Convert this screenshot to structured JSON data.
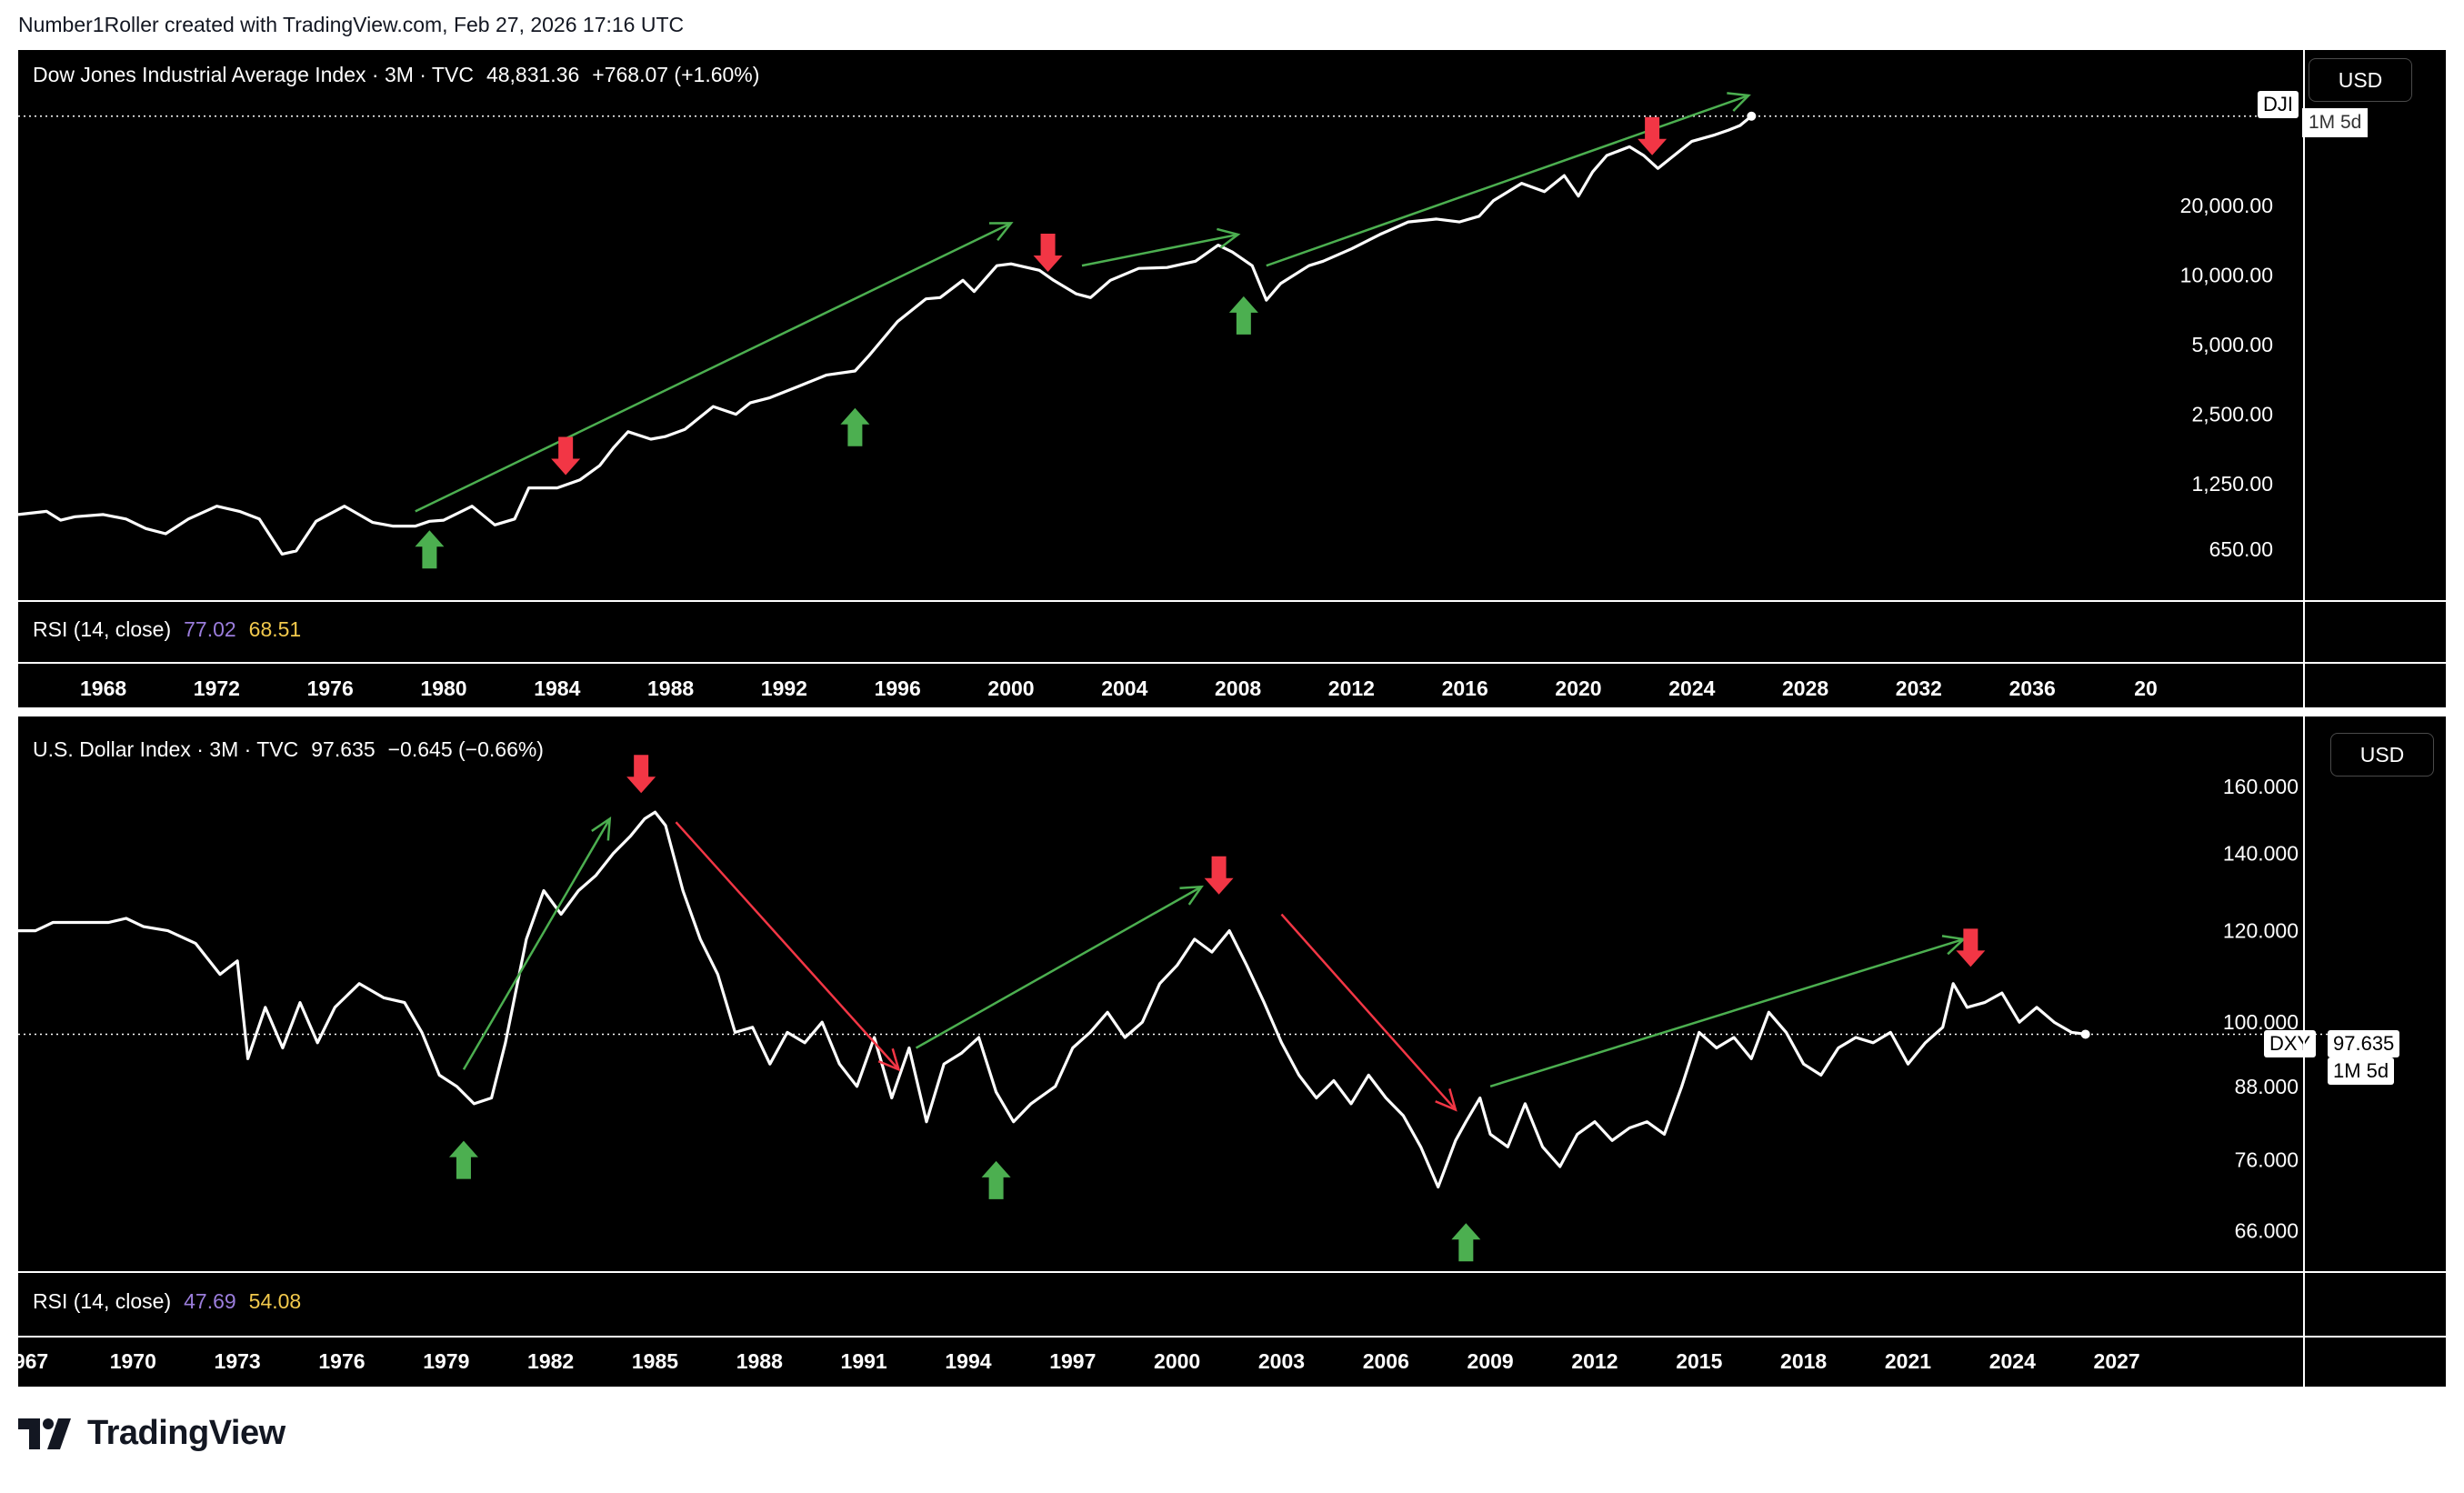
{
  "attribution": "Number1Roller created with TradingView.com, Feb 27, 2026 17:16 UTC",
  "brand": "TradingView",
  "colors": {
    "up_arrow": "#4caf50",
    "down_arrow": "#f23645",
    "trend_up": "#4caf50",
    "trend_down": "#f23645",
    "line": "#ffffff",
    "rsi_1": "#9b7ddc",
    "rsi_2": "#f2c94c"
  },
  "chart_data": [
    {
      "type": "line",
      "legend": {
        "name": "Dow Jones Industrial Average Index · 3M · TVC",
        "price": "48,831.36",
        "change": "+768.07 (+1.60%)"
      },
      "currency": "USD",
      "symbol_tag": "DJI",
      "interval_tag": "1M 5d",
      "yscale": "log",
      "ylim": [
        470,
        60000
      ],
      "xlim": [
        1965,
        2040
      ],
      "y_ticks": [
        "20,000.00",
        "10,000.00",
        "5,000.00",
        "2,500.00",
        "1,250.00",
        "650.00"
      ],
      "y_tick_values": [
        20000,
        10000,
        5000,
        2500,
        1250,
        650
      ],
      "x_ticks": [
        "1968",
        "1972",
        "1976",
        "1980",
        "1984",
        "1988",
        "1992",
        "1996",
        "2000",
        "2004",
        "2008",
        "2012",
        "2016",
        "2020",
        "2024",
        "2028",
        "2032",
        "2036",
        "20"
      ],
      "x_tick_values": [
        1968,
        1972,
        1976,
        1980,
        1984,
        1988,
        1992,
        1996,
        2000,
        2004,
        2008,
        2012,
        2016,
        2020,
        2024,
        2028,
        2032,
        2036,
        2040
      ],
      "x": [
        1965.0,
        1966.0,
        1966.5,
        1967.0,
        1968.0,
        1968.8,
        1969.5,
        1970.2,
        1971.0,
        1972.0,
        1972.8,
        1973.5,
        1974.3,
        1974.8,
        1975.5,
        1976.5,
        1977.5,
        1978.2,
        1979.0,
        1979.5,
        1980.0,
        1981.0,
        1981.8,
        1982.5,
        1983.0,
        1984.0,
        1984.8,
        1985.5,
        1986.0,
        1986.5,
        1987.3,
        1987.8,
        1988.5,
        1989.5,
        1990.3,
        1990.8,
        1991.5,
        1992.5,
        1993.5,
        1994.5,
        1995.0,
        1996.0,
        1997.0,
        1997.5,
        1998.3,
        1998.7,
        1999.5,
        2000.0,
        2001.0,
        2001.5,
        2002.3,
        2002.8,
        2003.5,
        2004.5,
        2005.5,
        2006.5,
        2007.3,
        2007.8,
        2008.5,
        2009.0,
        2009.5,
        2010.5,
        2011.0,
        2012.0,
        2013.0,
        2014.0,
        2015.0,
        2015.8,
        2016.5,
        2017.0,
        2018.0,
        2018.8,
        2019.5,
        2020.0,
        2020.5,
        2021.0,
        2021.8,
        2022.3,
        2022.8,
        2023.5,
        2024.0,
        2024.8,
        2025.3,
        2025.7,
        2026.1
      ],
      "values": [
        920,
        950,
        870,
        900,
        920,
        880,
        800,
        760,
        880,
        1000,
        950,
        880,
        620,
        640,
        860,
        1000,
        850,
        820,
        820,
        860,
        870,
        1000,
        830,
        880,
        1200,
        1200,
        1300,
        1500,
        1800,
        2100,
        1950,
        2000,
        2150,
        2700,
        2500,
        2800,
        2950,
        3300,
        3700,
        3850,
        4500,
        6300,
        7900,
        8000,
        9500,
        8500,
        11000,
        11200,
        10500,
        9500,
        8300,
        8000,
        9500,
        10700,
        10800,
        11500,
        13500,
        12600,
        11000,
        7800,
        9200,
        11000,
        11500,
        13000,
        15000,
        17000,
        17500,
        17000,
        18000,
        21000,
        25000,
        23000,
        27000,
        22000,
        28000,
        33000,
        36000,
        33000,
        29000,
        34000,
        38000,
        40500,
        42500,
        44500,
        48831
      ],
      "annotations": {
        "up_arrows": [
          [
            1979.5,
            650
          ],
          [
            1994.5,
            2200
          ],
          [
            2008.2,
            6700
          ]
        ],
        "down_arrows": [
          [
            1984.3,
            1650
          ],
          [
            2001.3,
            12500
          ],
          [
            2022.6,
            40000
          ]
        ],
        "trend_lines": [
          [
            [
              1979.0,
              950
            ],
            [
              2000.0,
              16800
            ]
          ],
          [
            [
              2002.5,
              11000
            ],
            [
              2008.0,
              15000
            ]
          ],
          [
            [
              2009.0,
              11000
            ],
            [
              2026.0,
              60000
            ]
          ]
        ]
      },
      "indicator": {
        "name": "RSI (14, close)",
        "value_1": "77.02",
        "value_2": "68.51"
      }
    },
    {
      "type": "line",
      "legend": {
        "name": "U.S. Dollar Index · 3M · TVC",
        "price": "97.635",
        "change": "−0.645 (−0.66%)"
      },
      "currency": "USD",
      "symbol_tag": "DXY",
      "price_tag": "97.635",
      "interval_tag": "1M 5d",
      "yscale": "log",
      "ylim": [
        62,
        172
      ],
      "xlim": [
        1966.7,
        2029.4
      ],
      "y_ticks": [
        "160.000",
        "140.000",
        "120.000",
        "100.000",
        "88.000",
        "76.000",
        "66.000"
      ],
      "y_tick_values": [
        160,
        140,
        120,
        100,
        88,
        76,
        66
      ],
      "x_ticks": [
        "967",
        "1970",
        "1973",
        "1976",
        "1979",
        "1982",
        "1985",
        "1988",
        "1991",
        "1994",
        "1997",
        "2000",
        "2003",
        "2006",
        "2009",
        "2012",
        "2015",
        "2018",
        "2021",
        "2024",
        "2027"
      ],
      "x_tick_values": [
        1967,
        1970,
        1973,
        1976,
        1979,
        1982,
        1985,
        1988,
        1991,
        1994,
        1997,
        2000,
        2003,
        2006,
        2009,
        2012,
        2015,
        2018,
        2021,
        2024,
        2027
      ],
      "x": [
        1966.7,
        1967.2,
        1967.7,
        1968.5,
        1969.3,
        1969.8,
        1970.3,
        1971.0,
        1971.8,
        1972.5,
        1973.0,
        1973.3,
        1973.8,
        1974.3,
        1974.8,
        1975.3,
        1975.8,
        1976.5,
        1977.2,
        1977.8,
        1978.3,
        1978.8,
        1979.3,
        1979.8,
        1980.3,
        1980.7,
        1981.3,
        1981.8,
        1982.3,
        1982.8,
        1983.3,
        1983.8,
        1984.3,
        1984.7,
        1985.0,
        1985.3,
        1985.8,
        1986.3,
        1986.8,
        1987.3,
        1987.8,
        1988.3,
        1988.8,
        1989.3,
        1989.8,
        1990.3,
        1990.8,
        1991.3,
        1991.8,
        1992.3,
        1992.8,
        1993.3,
        1993.8,
        1994.3,
        1994.8,
        1995.3,
        1995.8,
        1996.5,
        1997.0,
        1997.5,
        1998.0,
        1998.5,
        1999.0,
        1999.5,
        2000.0,
        2000.5,
        2001.0,
        2001.5,
        2002.0,
        2002.5,
        2003.0,
        2003.5,
        2004.0,
        2004.5,
        2005.0,
        2005.5,
        2006.0,
        2006.5,
        2007.0,
        2007.5,
        2008.0,
        2008.3,
        2008.7,
        2009.0,
        2009.5,
        2010.0,
        2010.5,
        2011.0,
        2011.5,
        2012.0,
        2012.5,
        2013.0,
        2013.5,
        2014.0,
        2014.5,
        2015.0,
        2015.5,
        2016.0,
        2016.5,
        2017.0,
        2017.5,
        2018.0,
        2018.5,
        2019.0,
        2019.5,
        2020.0,
        2020.5,
        2021.0,
        2021.5,
        2022.0,
        2022.3,
        2022.7,
        2023.2,
        2023.7,
        2024.2,
        2024.7,
        2025.2,
        2025.7,
        2026.1
      ],
      "values": [
        120,
        120,
        122,
        122,
        122,
        123,
        121,
        120,
        117,
        110,
        113,
        93,
        103,
        95,
        104,
        96,
        103,
        108,
        105,
        104,
        98,
        90,
        88,
        85,
        86,
        96,
        118,
        130,
        124,
        130,
        134,
        140,
        145,
        150,
        152,
        148,
        130,
        118,
        110,
        98,
        99,
        92,
        98,
        96,
        100,
        92,
        88,
        97,
        86,
        95,
        82,
        92,
        94,
        97,
        87,
        82,
        85,
        88,
        95,
        98,
        102,
        97,
        100,
        108,
        112,
        118,
        115,
        120,
        112,
        104,
        96,
        90,
        86,
        89,
        85,
        90,
        86,
        83,
        78,
        72,
        79,
        82,
        86,
        80,
        78,
        85,
        78,
        75,
        80,
        82,
        79,
        81,
        82,
        80,
        88,
        98,
        95,
        97,
        93,
        102,
        98,
        92,
        90,
        95,
        97,
        96,
        98,
        92,
        96,
        99,
        108,
        103,
        104,
        106,
        100,
        103,
        100,
        98,
        97.635
      ],
      "annotations": {
        "up_arrows": [
          [
            1979.5,
            76
          ],
          [
            1994.8,
            73
          ],
          [
            2008.3,
            64.5
          ]
        ],
        "down_arrows": [
          [
            1984.6,
            164
          ],
          [
            2001.2,
            134
          ],
          [
            2022.8,
            116
          ]
        ],
        "trend_lines_up": [
          [
            [
              1979.5,
              91
            ],
            [
              1983.7,
              150
            ]
          ],
          [
            [
              1992.5,
              95
            ],
            [
              2000.7,
              131
            ]
          ],
          [
            [
              2009.0,
              88
            ],
            [
              2022.6,
              118
            ]
          ]
        ],
        "trend_lines_down": [
          [
            [
              1985.6,
              149
            ],
            [
              1992.0,
              91
            ]
          ],
          [
            [
              2003.0,
              124
            ],
            [
              2008.0,
              84
            ]
          ]
        ]
      },
      "indicator": {
        "name": "RSI (14, close)",
        "value_1": "47.69",
        "value_2": "54.08"
      }
    }
  ]
}
